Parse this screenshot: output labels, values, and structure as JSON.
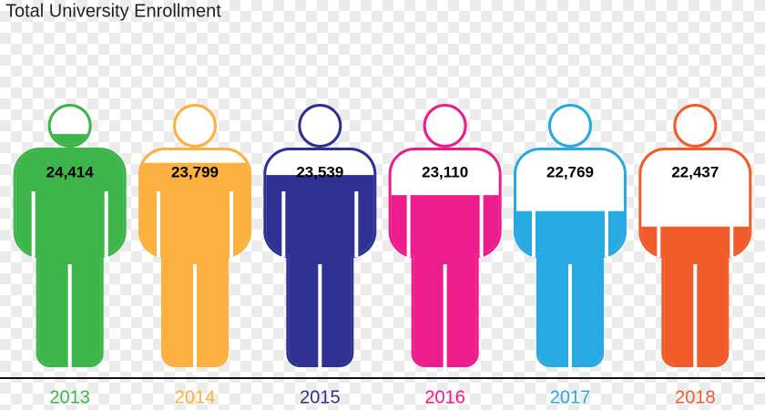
{
  "chart_data": {
    "type": "pictograph",
    "title": "Total University Enrollment",
    "categories": [
      "2013",
      "2014",
      "2015",
      "2016",
      "2017",
      "2018"
    ],
    "values": [
      24414,
      23799,
      23539,
      23110,
      22769,
      22437
    ],
    "value_labels": [
      "24,414",
      "23,799",
      "23,539",
      "23,110",
      "22,769",
      "22,437"
    ],
    "colors": [
      "#3db54a",
      "#fbb040",
      "#2e3192",
      "#ec1c8c",
      "#27aae1",
      "#f15a29"
    ],
    "ylim": [
      19300,
      25000
    ]
  }
}
